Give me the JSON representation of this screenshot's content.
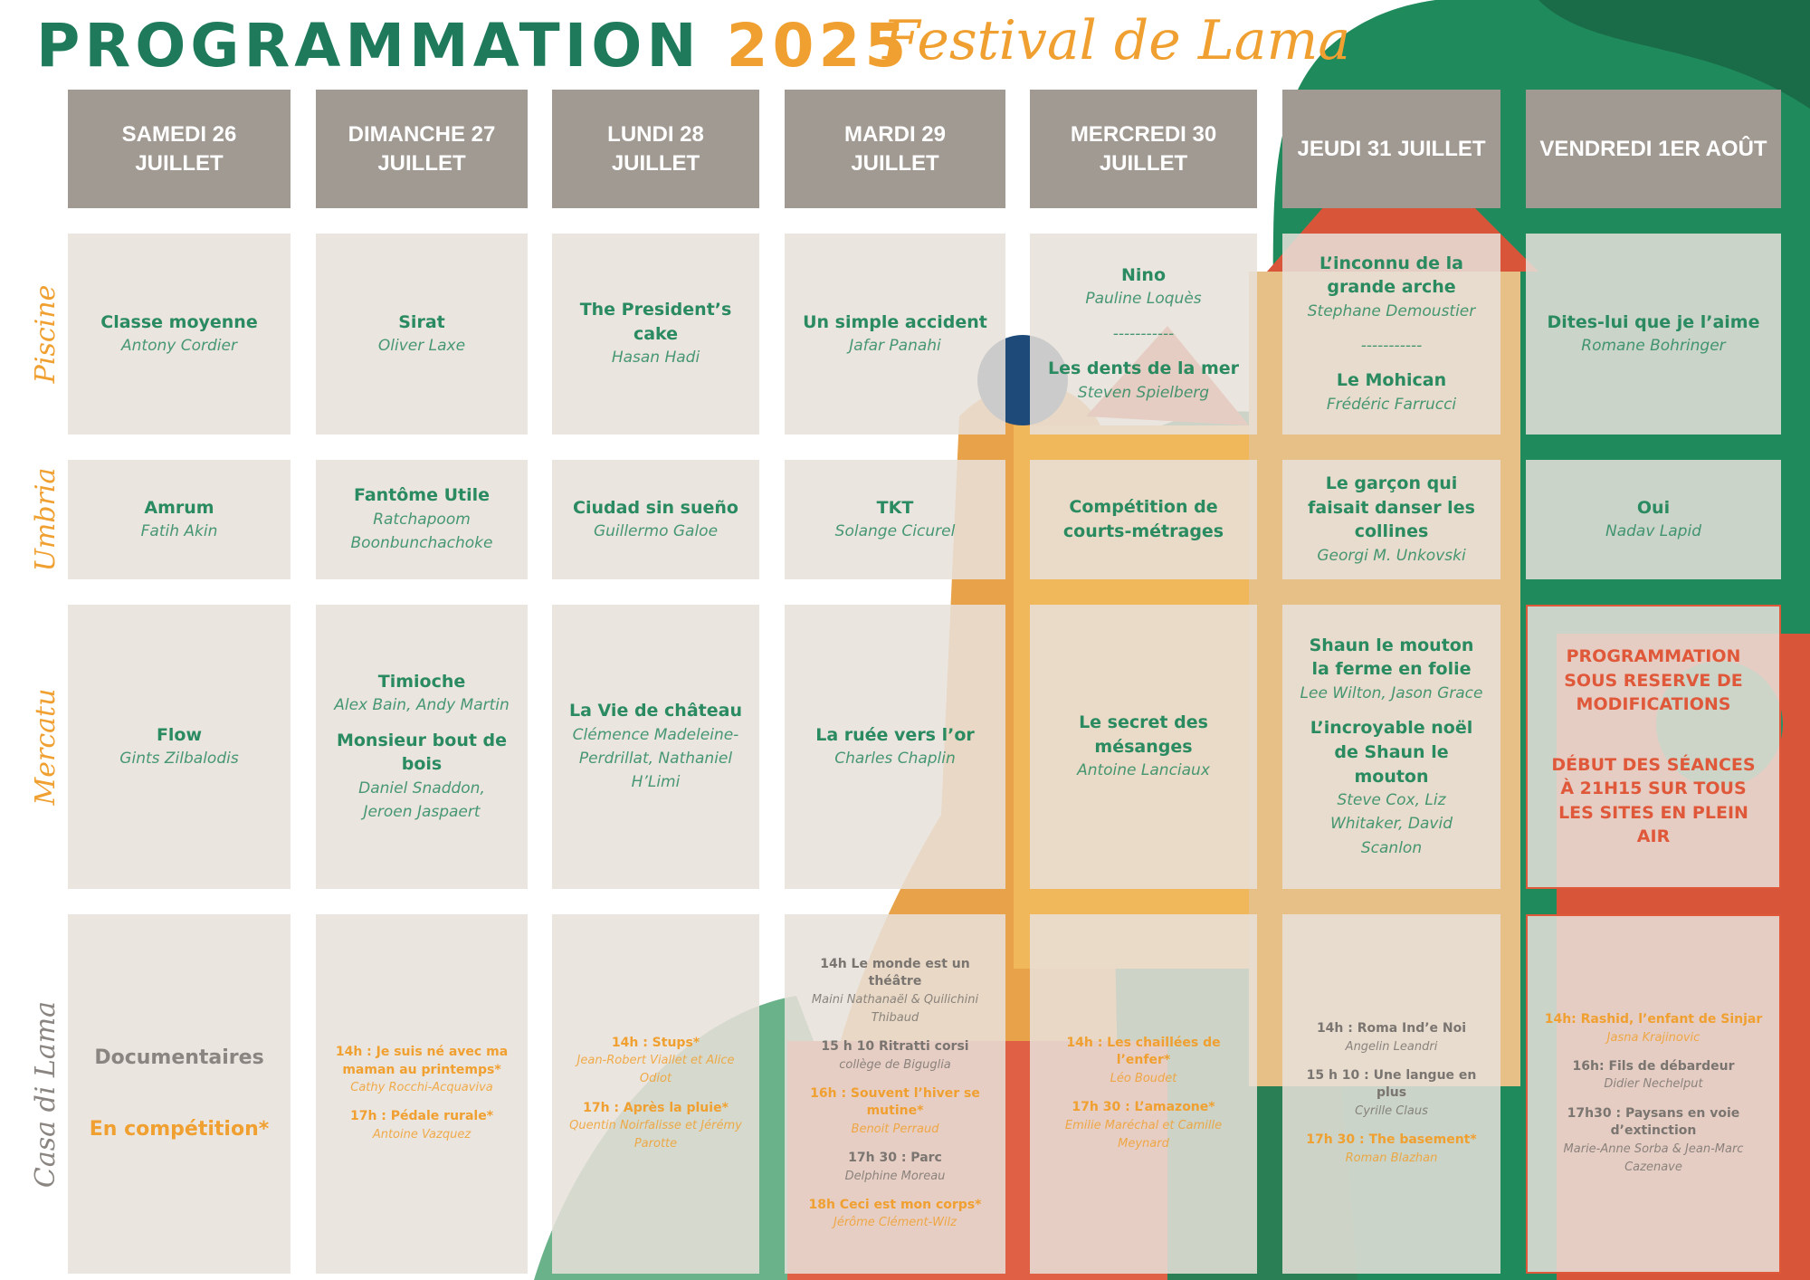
{
  "header": {
    "title": "PROGRAMMATION",
    "year": "2025",
    "festival": "Festival de Lama"
  },
  "days": [
    "SAMEDI 26 JUILLET",
    "DIMANCHE 27 JUILLET",
    "LUNDI 28 JUILLET",
    "MARDI 29 JUILLET",
    "MERCREDI 30 JUILLET",
    "JEUDI 31 JUILLET",
    "VENDREDI 1ER AOÛT"
  ],
  "venues": [
    "Piscine",
    "Umbria",
    "Mercatu",
    "Casa di Lama"
  ],
  "grid": [
    [
      {
        "items": [
          {
            "title": "Classe moyenne",
            "director": "Antony Cordier",
            "color": "#2a8a60"
          }
        ]
      },
      {
        "items": [
          {
            "title": "Sirat",
            "director": "Oliver Laxe",
            "color": "#2a8a60"
          }
        ]
      },
      {
        "items": [
          {
            "title": "The President’s cake",
            "director": "Hasan Hadi",
            "color": "#2a8a60"
          }
        ]
      },
      {
        "items": [
          {
            "title": "Un simple accident",
            "director": "Jafar Panahi",
            "color": "#2a8a60"
          }
        ]
      },
      {
        "items": [
          {
            "title": "Nino",
            "director": "Pauline Loquès",
            "color": "#2a8a60"
          },
          {
            "director": "-----------",
            "color": "#2a8a60"
          },
          {
            "title": "Les dents de la mer",
            "director": "Steven Spielberg",
            "color": "#2a8a60"
          }
        ]
      },
      {
        "items": [
          {
            "title": "L’inconnu de la grande arche",
            "director": "Stephane Demoustier",
            "color": "#2a8a60"
          },
          {
            "director": "-----------",
            "color": "#2a8a60"
          },
          {
            "title": "Le Mohican",
            "director": "Frédéric Farrucci",
            "color": "#2a8a60"
          }
        ]
      },
      {
        "items": [
          {
            "title": "Dites-lui que je l’aime",
            "director": "Romane Bohringer",
            "color": "#2a8a60"
          }
        ]
      }
    ],
    [
      {
        "items": [
          {
            "title": "Amrum",
            "director": "Fatih Akin",
            "color": "#2a8a60"
          }
        ]
      },
      {
        "items": [
          {
            "title": "Fantôme Utile",
            "director": "Ratchapoom Boonbunchachoke",
            "color": "#2a8a60"
          }
        ]
      },
      {
        "items": [
          {
            "title": "Ciudad sin sueño",
            "director": "Guillermo Galoe",
            "color": "#2a8a60"
          }
        ]
      },
      {
        "items": [
          {
            "title": "TKT",
            "director": "Solange Cicurel",
            "color": "#2a8a60"
          }
        ]
      },
      {
        "items": [
          {
            "title": "Compétition de courts-métrages",
            "color": "#2a8a60"
          }
        ]
      },
      {
        "items": [
          {
            "title": "Le garçon qui faisait danser les collines",
            "director": "Georgi M. Unkovski",
            "color": "#2a8a60"
          }
        ]
      },
      {
        "items": [
          {
            "title": "Oui",
            "director": "Nadav Lapid",
            "color": "#2a8a60"
          }
        ]
      }
    ],
    [
      {
        "items": [
          {
            "title": "Flow",
            "director": "Gints Zilbalodis",
            "color": "#2a8a60"
          }
        ]
      },
      {
        "items": [
          {
            "title": "Timioche",
            "director": "Alex Bain, Andy Martin",
            "color": "#2a8a60"
          },
          {
            "title": "Monsieur bout de bois",
            "director": "Daniel Snaddon, Jeroen Jaspaert",
            "color": "#2a8a60"
          }
        ]
      },
      {
        "items": [
          {
            "title": "La Vie de château",
            "director": "Clémence Madeleine-Perdrillat, Nathaniel H’Limi",
            "color": "#2a8a60"
          }
        ]
      },
      {
        "items": [
          {
            "title": "La ruée vers l’or",
            "director": "Charles Chaplin",
            "color": "#2a8a60"
          }
        ]
      },
      {
        "items": [
          {
            "title": "Le secret des mésanges",
            "director": "Antoine Lanciaux",
            "color": "#2a8a60"
          }
        ]
      },
      {
        "items": [
          {
            "title": "Shaun le mouton la ferme en folie",
            "director": "Lee Wilton, Jason Grace",
            "color": "#2a8a60"
          },
          {
            "title": "L’incroyable noël de Shaun le mouton",
            "director": "Steve Cox, Liz Whitaker, David Scanlon",
            "color": "#2a8a60"
          }
        ]
      },
      {
        "items": [
          {
            "title": "PROGRAMMATION SOUS RESERVE DE MODIFICATIONS",
            "color": "#e0583a"
          },
          {
            "title": "DÉBUT DES SÉANCES À 21H15 SUR TOUS LES SITES EN PLEIN AIR",
            "color": "#e0583a"
          }
        ]
      }
    ],
    [
      {
        "items": [
          {
            "title": "Documentaires",
            "color": "#8a8580"
          },
          {
            "title": "En compétition*",
            "color": "#f0a030"
          }
        ]
      },
      {
        "items": [
          {
            "title": "14h : Je suis né avec ma maman au printemps*",
            "director": "Cathy Rocchi-Acquaviva",
            "color": "#f0a030"
          },
          {
            "title": "17h : Pédale rurale*",
            "director": "Antoine Vazquez",
            "color": "#f0a030"
          }
        ]
      },
      {
        "items": [
          {
            "title": "14h : Stups*",
            "director": "Jean-Robert Viallet et Alice Odiot",
            "color": "#f0a030"
          },
          {
            "title": "17h : Après la pluie*",
            "director": "Quentin Noirfalisse et Jérémy Parotte",
            "color": "#f0a030"
          }
        ]
      },
      {
        "items": [
          {
            "title": "14h Le monde est un théâtre",
            "director": "Maini Nathanaël & Quilichini Thibaud",
            "color": "#7a7570"
          },
          {
            "title": "15 h 10 Ritratti corsi",
            "director": "collège de Biguglia",
            "color": "#7a7570"
          },
          {
            "title": "16h : Souvent l’hiver se mutine*",
            "director": "Benoit Perraud",
            "color": "#f0a030"
          },
          {
            "title": "17h 30 : Parc",
            "director": "Delphine Moreau",
            "color": "#7a7570"
          },
          {
            "title": "18h Ceci est mon corps*",
            "director": "Jérôme Clément-Wilz",
            "color": "#f0a030"
          }
        ]
      },
      {
        "items": [
          {
            "title": "14h : Les chaillées de l’enfer*",
            "director": "Léo Boudet",
            "color": "#f0a030"
          },
          {
            "title": "17h 30 : L’amazone*",
            "director": "Emilie Maréchal et Camille Meynard",
            "color": "#f0a030"
          }
        ]
      },
      {
        "items": [
          {
            "title": "14h : Roma Ind’e Noi",
            "director": "Angelin Leandri",
            "color": "#7a7570"
          },
          {
            "title": "15 h 10 : Une langue en plus",
            "director": "Cyrille Claus",
            "color": "#7a7570"
          },
          {
            "title": "17h 30 : The basement*",
            "director": "Roman Blazhan",
            "color": "#f0a030"
          }
        ]
      },
      {
        "items": [
          {
            "title": "14h: Rashid, l’enfant de Sinjar",
            "director": "Jasna Krajinovic",
            "color": "#f0a030"
          },
          {
            "title": "16h: Fils de débardeur",
            "director": "Didier Nechelput",
            "color": "#7a7570"
          },
          {
            "title": "17h30 : Paysans en voie d’extinction",
            "director": "Marie-Anne Sorba & Jean-Marc Cazenave",
            "color": "#7a7570"
          }
        ]
      }
    ]
  ]
}
